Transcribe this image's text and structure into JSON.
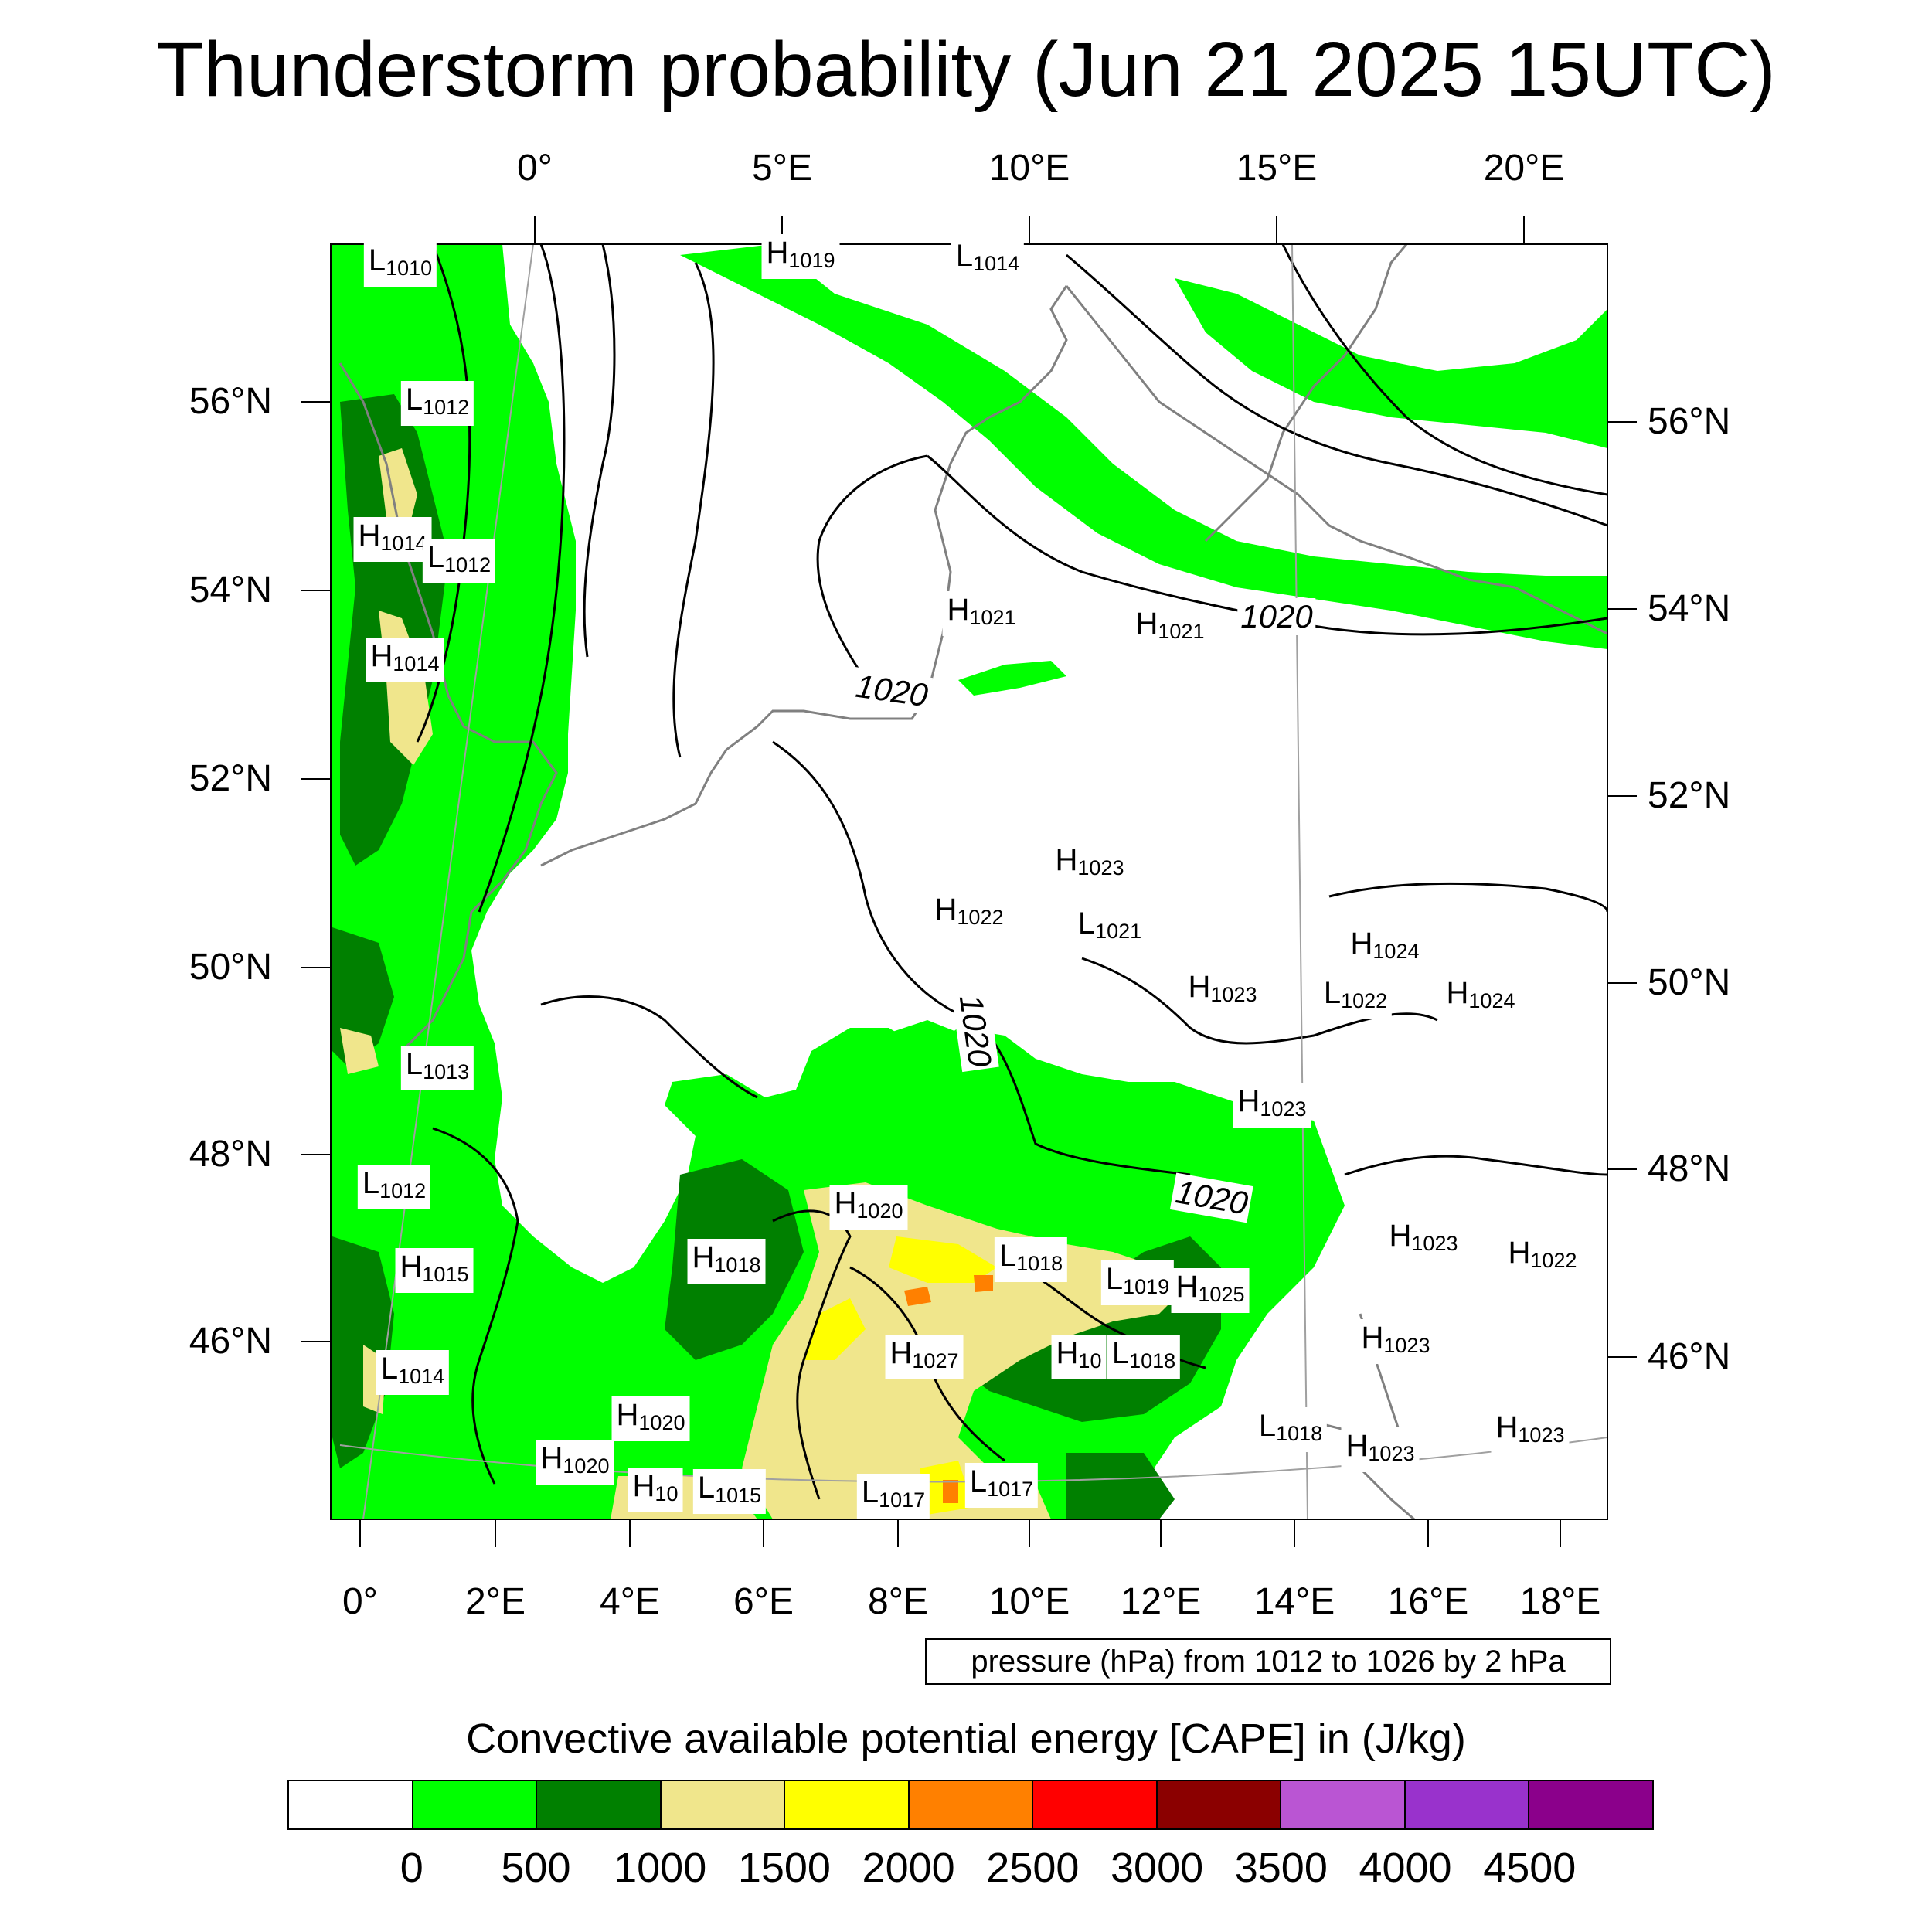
{
  "title": "Thunderstorm probability (Jun 21 2025 15UTC)",
  "top_axis_labels": [
    "0°",
    "5°E",
    "10°E",
    "15°E",
    "20°E"
  ],
  "bottom_axis_labels": [
    "0°",
    "2°E",
    "4°E",
    "6°E",
    "8°E",
    "10°E",
    "12°E",
    "14°E",
    "16°E",
    "18°E"
  ],
  "left_axis_labels": [
    "56°N",
    "54°N",
    "52°N",
    "50°N",
    "48°N",
    "46°N"
  ],
  "right_axis_labels": [
    "56°N",
    "54°N",
    "52°N",
    "50°N",
    "48°N",
    "46°N"
  ],
  "pressure_centers": [
    {
      "type": "L",
      "value": "1010"
    },
    {
      "type": "L",
      "value": "1012"
    },
    {
      "type": "H",
      "value": "1014"
    },
    {
      "type": "L",
      "value": "1012"
    },
    {
      "type": "H",
      "value": "1014"
    },
    {
      "type": "L",
      "value": "1013"
    },
    {
      "type": "L",
      "value": "1012"
    },
    {
      "type": "H",
      "value": "1015"
    },
    {
      "type": "L",
      "value": "1014"
    },
    {
      "type": "H",
      "value": "1020"
    },
    {
      "type": "H",
      "value": "1020"
    },
    {
      "type": "H",
      "value": "10"
    },
    {
      "type": "L",
      "value": "1015"
    },
    {
      "type": "H",
      "value": "1018"
    },
    {
      "type": "H",
      "value": "1020"
    },
    {
      "type": "H",
      "value": "1027"
    },
    {
      "type": "L",
      "value": "1017"
    },
    {
      "type": "L",
      "value": "1017"
    },
    {
      "type": "L",
      "value": "1018"
    },
    {
      "type": "L",
      "value": "1019"
    },
    {
      "type": "H",
      "value": "10"
    },
    {
      "type": "L",
      "value": "1018"
    },
    {
      "type": "H",
      "value": "1019"
    },
    {
      "type": "L",
      "value": "1014"
    },
    {
      "type": "H",
      "value": "1021"
    },
    {
      "type": "H",
      "value": "1021"
    },
    {
      "type": "H",
      "value": "1023"
    },
    {
      "type": "H",
      "value": "1022"
    },
    {
      "type": "L",
      "value": "1021"
    },
    {
      "type": "H",
      "value": "1023"
    },
    {
      "type": "H",
      "value": "1024"
    },
    {
      "type": "L",
      "value": "1022"
    },
    {
      "type": "H",
      "value": "1024"
    },
    {
      "type": "H",
      "value": "1023"
    },
    {
      "type": "H",
      "value": "1023"
    },
    {
      "type": "H",
      "value": "1022"
    },
    {
      "type": "H",
      "value": "1023"
    },
    {
      "type": "L",
      "value": "1018"
    },
    {
      "type": "H",
      "value": "1023"
    },
    {
      "type": "H",
      "value": "1023"
    },
    {
      "type": "H",
      "value": "1025"
    }
  ],
  "contour_labels": [
    "1020",
    "1020",
    "1020",
    "1020"
  ],
  "contour_info": "pressure (hPa) from 1012 to 1026 by 2 hPa",
  "colorbar": {
    "title": "Convective available potential energy [CAPE] in (J/kg)",
    "colors": [
      "#ffffff",
      "#00ff00",
      "#008000",
      "#f0e68c",
      "#ffff00",
      "#ff8000",
      "#ff0000",
      "#8b0000",
      "#ba55d3",
      "#9932cc",
      "#8b008b"
    ],
    "labels": [
      "0",
      "500",
      "1000",
      "1500",
      "2000",
      "2500",
      "3000",
      "3500",
      "4000",
      "4500"
    ]
  },
  "map_colors": {
    "light_green": "#00ff00",
    "dark_green": "#008000",
    "khaki": "#f0e68c",
    "yellow": "#ffff00",
    "orange": "#ff8000",
    "coast": "#808080"
  }
}
